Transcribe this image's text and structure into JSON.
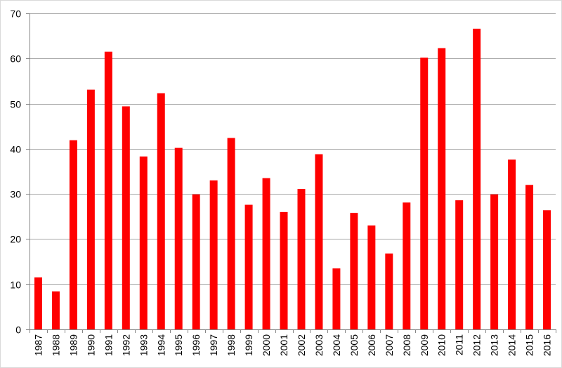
{
  "chart_data": {
    "type": "bar",
    "categories": [
      "1987",
      "1988",
      "1989",
      "1990",
      "1991",
      "1992",
      "1993",
      "1994",
      "1995",
      "1996",
      "1997",
      "1998",
      "1999",
      "2000",
      "2001",
      "2002",
      "2003",
      "2004",
      "2005",
      "2006",
      "2007",
      "2008",
      "2009",
      "2010",
      "2011",
      "2012",
      "2013",
      "2014",
      "2015",
      "2016"
    ],
    "values": [
      11.5,
      8.4,
      41.9,
      53.1,
      61.5,
      49.4,
      38.3,
      52.3,
      40.2,
      29.9,
      33.0,
      42.4,
      27.6,
      33.5,
      26.0,
      31.1,
      38.8,
      13.5,
      25.8,
      23.0,
      16.8,
      28.1,
      60.2,
      62.3,
      28.6,
      66.6,
      29.9,
      37.6,
      32.0,
      26.4
    ],
    "title": "",
    "xlabel": "",
    "ylabel": "",
    "ylim": [
      0,
      70
    ],
    "yticks": [
      "0",
      "10",
      "20",
      "30",
      "40",
      "50",
      "60",
      "70"
    ],
    "grid": true,
    "legend": "none",
    "bar_color": "#ff0000",
    "grid_color": "#a6a6a6",
    "axis_color": "#868686"
  }
}
